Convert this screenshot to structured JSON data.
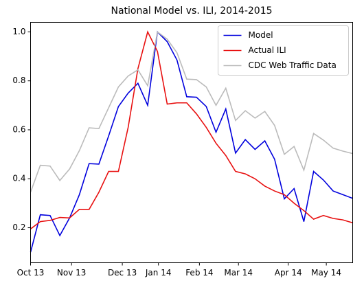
{
  "chart_data": {
    "type": "line",
    "title": "National Model vs. ILI, 2014-2015",
    "x": [
      0,
      1,
      2,
      3,
      4,
      5,
      6,
      7,
      8,
      9,
      10,
      11,
      12,
      13,
      14,
      15,
      16,
      17,
      18,
      19,
      20,
      21,
      22,
      23,
      24,
      25,
      26,
      27,
      28,
      29,
      30,
      31,
      32,
      33
    ],
    "xlim": [
      0,
      33
    ],
    "xticks": [
      {
        "value": 0,
        "label": "Oct 13"
      },
      {
        "value": 4.2,
        "label": "Nov 13"
      },
      {
        "value": 9.4,
        "label": "Dec 13"
      },
      {
        "value": 13.1,
        "label": "Jan 14"
      },
      {
        "value": 17.3,
        "label": "Feb 14"
      },
      {
        "value": 21.3,
        "label": "Mar 14"
      },
      {
        "value": 26.4,
        "label": "Apr 14"
      },
      {
        "value": 30.3,
        "label": "May 14"
      }
    ],
    "ylim": [
      0.057,
      1.039
    ],
    "yticks": [
      0.2,
      0.4,
      0.6,
      0.8,
      {
        "value": 1,
        "label": "1.0"
      }
    ],
    "legend": "upper right",
    "series": [
      {
        "name": "Model",
        "color": "#0000dd",
        "values": [
          0.1,
          0.253,
          0.25,
          0.168,
          0.24,
          0.335,
          0.462,
          0.46,
          0.575,
          0.695,
          0.75,
          0.79,
          0.7,
          1.0,
          0.96,
          0.885,
          0.735,
          0.733,
          0.695,
          0.59,
          0.685,
          0.505,
          0.56,
          0.52,
          0.555,
          0.48,
          0.318,
          0.36,
          0.225,
          0.43,
          0.395,
          0.35,
          0.335,
          0.32
        ]
      },
      {
        "name": "Actual ILI",
        "color": "#e81010",
        "values": [
          0.195,
          0.225,
          0.23,
          0.242,
          0.24,
          0.275,
          0.275,
          0.345,
          0.43,
          0.43,
          0.61,
          0.85,
          1.0,
          0.92,
          0.705,
          0.71,
          0.71,
          0.665,
          0.61,
          0.545,
          0.495,
          0.43,
          0.42,
          0.4,
          0.37,
          0.35,
          0.335,
          0.3,
          0.27,
          0.235,
          0.25,
          0.238,
          0.232,
          0.22
        ]
      },
      {
        "name": "CDC Web Traffic Data",
        "color": "#bbbbbb",
        "values": [
          0.345,
          0.455,
          0.452,
          0.393,
          0.44,
          0.515,
          0.608,
          0.605,
          0.69,
          0.775,
          0.82,
          0.845,
          0.78,
          1.0,
          0.97,
          0.915,
          0.807,
          0.805,
          0.775,
          0.7,
          0.77,
          0.638,
          0.678,
          0.648,
          0.675,
          0.618,
          0.5,
          0.532,
          0.435,
          0.585,
          0.558,
          0.525,
          0.513,
          0.503
        ]
      }
    ]
  }
}
